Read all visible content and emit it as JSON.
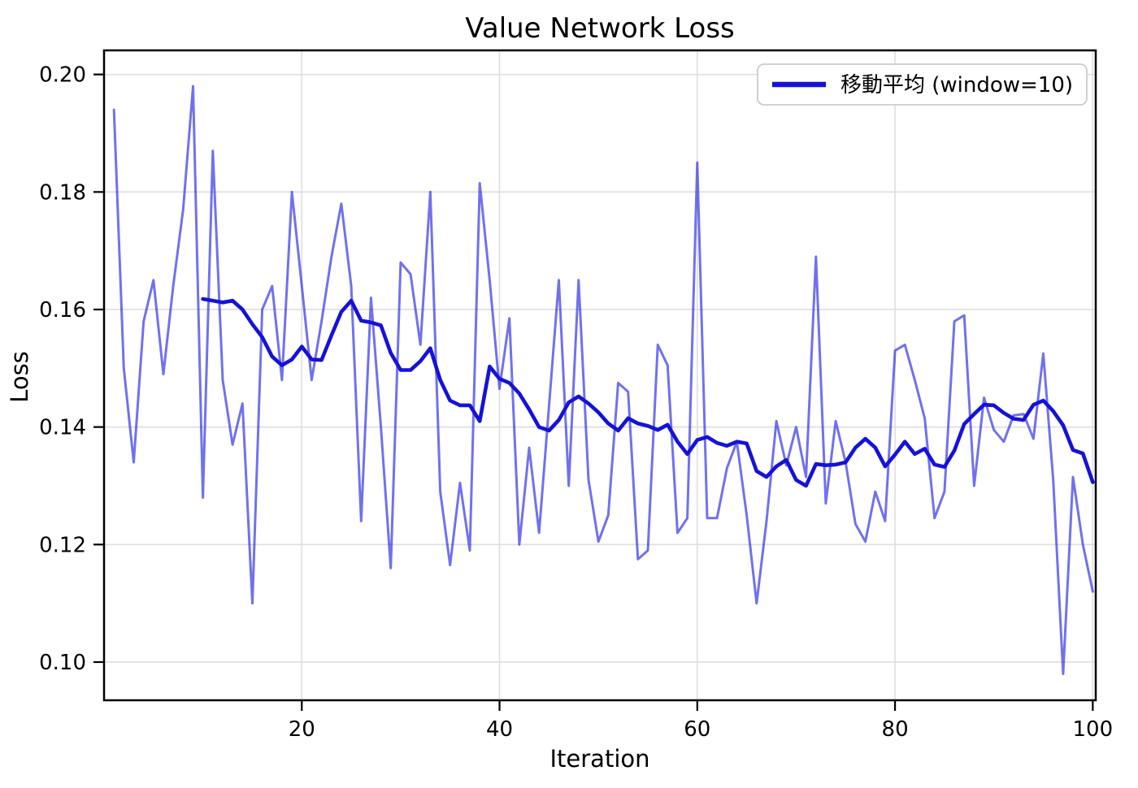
{
  "figure": {
    "title": "Value Network Loss",
    "xlabel": "Iteration",
    "ylabel": "Loss"
  },
  "legend": {
    "label": "移動平均 (window=10)",
    "position": "upper right",
    "swatch_color": "#1512d8"
  },
  "colors": {
    "raw_line": "#1e1ee6",
    "moving_average_line": "#1512d8",
    "grid": "#dedede",
    "spine": "#000000",
    "background": "#ffffff"
  },
  "chart_data": {
    "type": "line",
    "title": "Value Network Loss",
    "xlabel": "Iteration",
    "ylabel": "Loss",
    "xlim": [
      0,
      100.3
    ],
    "ylim": [
      0.0935,
      0.2041
    ],
    "x_ticks": [
      20,
      40,
      60,
      80,
      100
    ],
    "y_ticks": [
      0.1,
      0.12,
      0.14,
      0.16,
      0.18,
      0.2
    ],
    "grid": true,
    "legend_position": "upper right",
    "series": [
      {
        "name": "loss-raw",
        "label": "",
        "x_start": 1,
        "color": "#1e1ee6",
        "opacity": 0.63,
        "width": 3,
        "values": [
          0.194,
          0.15,
          0.134,
          0.158,
          0.165,
          0.149,
          0.164,
          0.177,
          0.198,
          0.128,
          0.187,
          0.148,
          0.137,
          0.144,
          0.11,
          0.16,
          0.164,
          0.148,
          0.18,
          0.164,
          0.148,
          0.158,
          0.169,
          0.178,
          0.164,
          0.124,
          0.162,
          0.14,
          0.116,
          0.168,
          0.166,
          0.154,
          0.18,
          0.129,
          0.1165,
          0.1305,
          0.119,
          0.1815,
          0.165,
          0.1465,
          0.1585,
          0.12,
          0.1365,
          0.122,
          0.1435,
          0.165,
          0.13,
          0.165,
          0.131,
          0.1205,
          0.125,
          0.1475,
          0.146,
          0.1175,
          0.119,
          0.154,
          0.1505,
          0.122,
          0.1245,
          0.185,
          0.1245,
          0.1245,
          0.133,
          0.1375,
          0.125,
          0.11,
          0.124,
          0.141,
          0.1335,
          0.14,
          0.1315,
          0.169,
          0.127,
          0.141,
          0.134,
          0.1235,
          0.1205,
          0.129,
          0.124,
          0.153,
          0.154,
          0.148,
          0.1415,
          0.1245,
          0.129,
          0.158,
          0.159,
          0.13,
          0.145,
          0.1395,
          0.1375,
          0.142,
          0.1422,
          0.138,
          0.1525,
          0.131,
          0.098,
          0.1315,
          0.12,
          0.112
        ]
      },
      {
        "name": "moving-average",
        "label": "移動平均 (window=10)",
        "x_start": 10,
        "color": "#1512d8",
        "opacity": 1,
        "width": 4.6,
        "values": [
          0.1618,
          0.1615,
          0.1612,
          0.1615,
          0.16,
          0.1575,
          0.1553,
          0.152,
          0.1505,
          0.1515,
          0.1537,
          0.1515,
          0.1514,
          0.1556,
          0.1596,
          0.1615,
          0.1581,
          0.1578,
          0.1573,
          0.1526,
          0.1497,
          0.1497,
          0.1512,
          0.1534,
          0.148,
          0.1445,
          0.1437,
          0.1437,
          0.141,
          0.1503,
          0.1482,
          0.1475,
          0.1457,
          0.143,
          0.14,
          0.1394,
          0.1412,
          0.1442,
          0.1452,
          0.144,
          0.1425,
          0.1406,
          0.1394,
          0.1415,
          0.1406,
          0.1402,
          0.1395,
          0.1404,
          0.1375,
          0.1354,
          0.1378,
          0.1383,
          0.1373,
          0.1368,
          0.1375,
          0.1372,
          0.1325,
          0.1315,
          0.1333,
          0.1344,
          0.131,
          0.13,
          0.1337,
          0.1335,
          0.1336,
          0.134,
          0.1365,
          0.138,
          0.1365,
          0.1333,
          0.1353,
          0.1375,
          0.1354,
          0.1363,
          0.1336,
          0.1332,
          0.136,
          0.1405,
          0.1422,
          0.1438,
          0.1437,
          0.1424,
          0.1414,
          0.1412,
          0.1438,
          0.1445,
          0.1427,
          0.1403,
          0.1361,
          0.1355,
          0.1306
        ]
      }
    ]
  }
}
